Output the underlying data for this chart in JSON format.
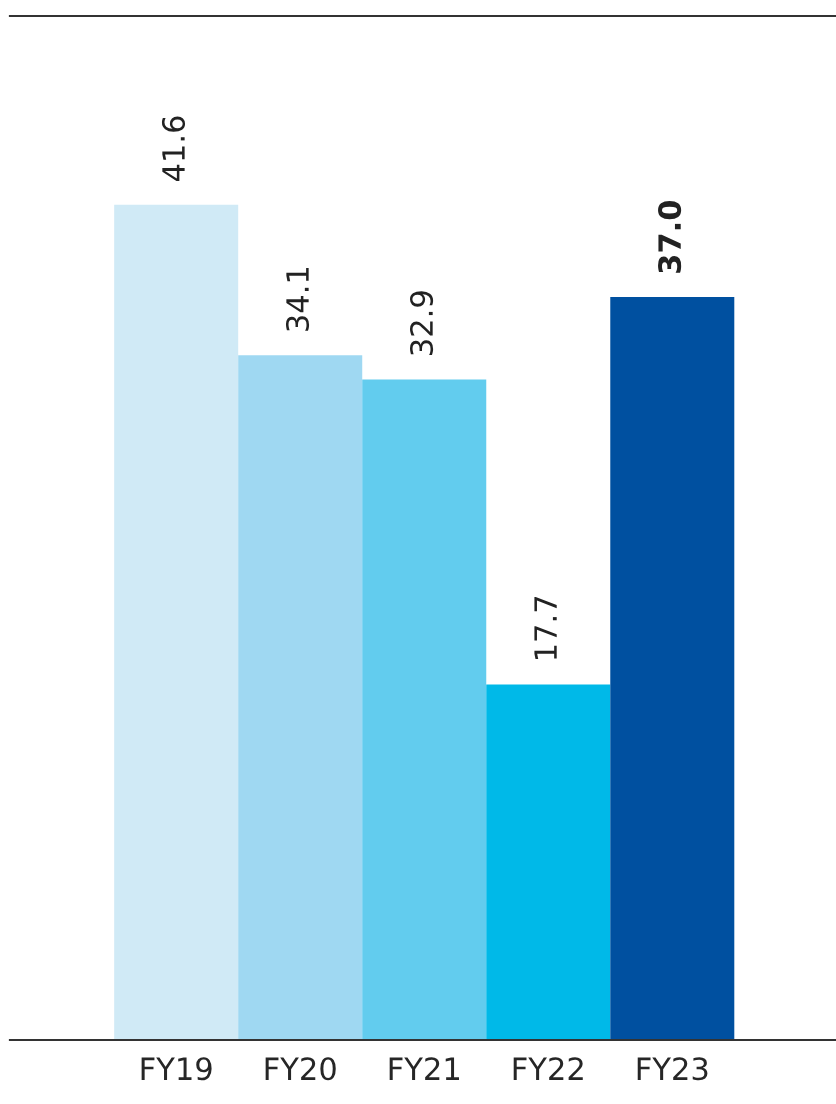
{
  "chart_data": {
    "type": "bar",
    "categories": [
      "FY19",
      "FY20",
      "FY21",
      "FY22",
      "FY23"
    ],
    "values": [
      41.6,
      34.1,
      32.9,
      17.7,
      37.0
    ],
    "colors": [
      "#d0eaf6",
      "#9fd8f2",
      "#62ccee",
      "#00b9e8",
      "#0050a0"
    ],
    "value_labels": [
      "41.6",
      "34.1",
      "32.9",
      "17.7",
      "37.0"
    ],
    "grid": false,
    "legend": false
  }
}
